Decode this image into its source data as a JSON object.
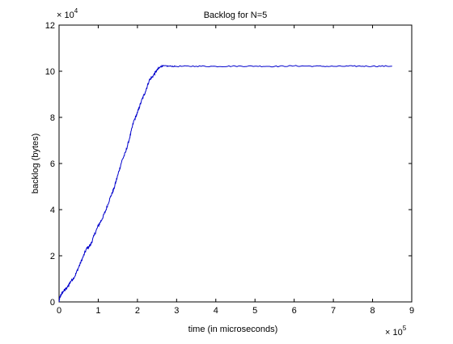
{
  "chart_data": {
    "type": "line",
    "title": "Backlog for N=5",
    "xlabel": "time (in microseconds)",
    "ylabel": "backlog (bytes)",
    "xlim": [
      0,
      9
    ],
    "ylim": [
      0,
      12
    ],
    "x_ticks": [
      0,
      1,
      2,
      3,
      4,
      5,
      6,
      7,
      8,
      9
    ],
    "y_ticks": [
      0,
      2,
      4,
      6,
      8,
      10,
      12
    ],
    "x_tick_labels": [
      "0",
      "1",
      "2",
      "3",
      "4",
      "5",
      "6",
      "7",
      "8",
      "9"
    ],
    "y_tick_labels": [
      "0",
      "2",
      "4",
      "6",
      "8",
      "10",
      "12"
    ],
    "x_multiplier": {
      "base": "× 10",
      "exponent": "5"
    },
    "y_multiplier": {
      "base": "× 10",
      "exponent": "4"
    },
    "grid": false,
    "line_color": "#0000cc",
    "series": [
      {
        "x": [
          0,
          0.02,
          0.05,
          0.1,
          0.2,
          0.3,
          0.4,
          0.5,
          0.6,
          0.7,
          0.8,
          0.9,
          1.0,
          1.1,
          1.2,
          1.3,
          1.4,
          1.5,
          1.6,
          1.7,
          1.8,
          1.9,
          2.0,
          2.1,
          2.2,
          2.3,
          2.4,
          2.5,
          2.6,
          2.65,
          2.8,
          3.0,
          3.5,
          4.0,
          4.5,
          5.0,
          5.5,
          6.0,
          6.5,
          7.0,
          7.5,
          8.0,
          8.5
        ],
        "y": [
          0,
          0.2,
          0.3,
          0.45,
          0.6,
          0.9,
          1.1,
          1.5,
          1.9,
          2.3,
          2.45,
          2.9,
          3.3,
          3.6,
          4.0,
          4.5,
          4.9,
          5.5,
          6.1,
          6.5,
          7.1,
          7.8,
          8.2,
          8.7,
          9.1,
          9.6,
          9.8,
          10.05,
          10.2,
          10.23,
          10.22,
          10.21,
          10.22,
          10.21,
          10.22,
          10.22,
          10.21,
          10.23,
          10.22,
          10.21,
          10.22,
          10.22,
          10.22
        ]
      }
    ]
  }
}
